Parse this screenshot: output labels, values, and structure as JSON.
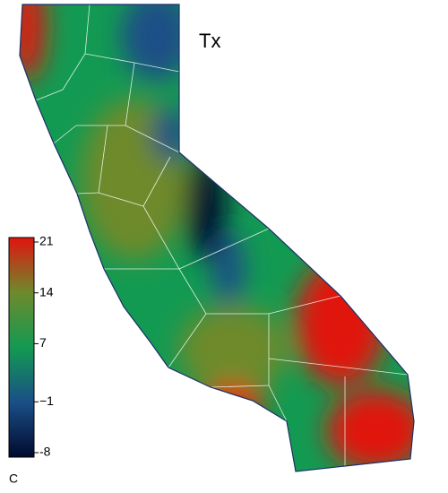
{
  "map": {
    "title": "Tx",
    "colorbar": {
      "lim": [
        -8,
        21
      ],
      "ticks": [
        21,
        14,
        7,
        {
          "value": -1,
          "label": "−1"
        },
        -8
      ],
      "unit": "C",
      "colors": [
        "#000a2e",
        "#1a4f86",
        "#139a52",
        "#6e8a2c",
        "#e0140e"
      ]
    }
  }
}
